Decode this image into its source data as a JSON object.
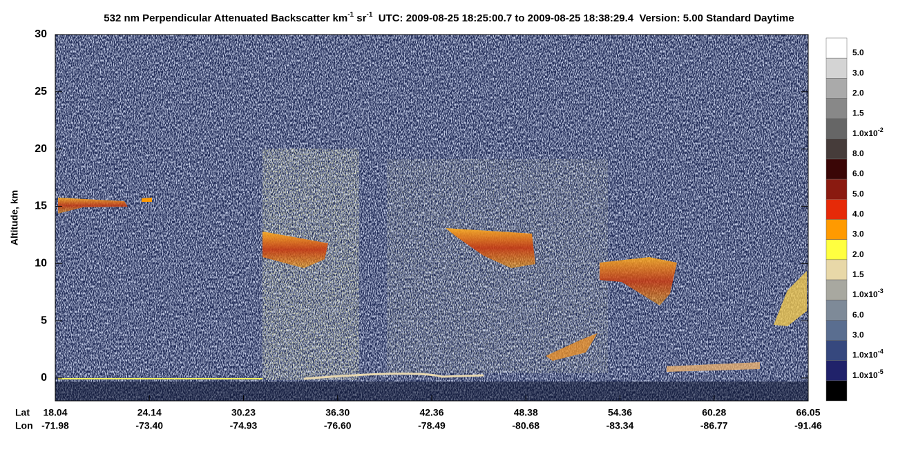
{
  "chart_data": {
    "type": "profile",
    "title_parts": [
      "532 nm Perpendicular Attenuated Backscatter km",
      "-1",
      " sr",
      "-1",
      "  UTC: 2009-08-25 18:25:00.7 to 2009-08-25 18:38:29.4  Version: 5.00 Standard Daytime"
    ],
    "y_label": "Altitude, km",
    "ylim": [
      -2,
      30
    ],
    "yticks": [
      0,
      5,
      10,
      15,
      20,
      25,
      30
    ],
    "x_row_labels": [
      "Lat",
      "Lon"
    ],
    "lat": [
      "18.04",
      "24.14",
      "30.23",
      "36.30",
      "42.36",
      "48.38",
      "54.36",
      "60.28",
      "66.05"
    ],
    "lon": [
      "-71.98",
      "-73.40",
      "-74.93",
      "-76.60",
      "-78.49",
      "-80.68",
      "-83.34",
      "-86.77",
      "-91.46"
    ],
    "colorbar": {
      "colors": [
        "#ffffff",
        "#d4d4d4",
        "#aaaaaa",
        "#888888",
        "#666666",
        "#463c3a",
        "#3a0606",
        "#8a1a10",
        "#e62a08",
        "#ff9a00",
        "#ffff40",
        "#e8d8a8",
        "#a8a8a0",
        "#7e8a98",
        "#5a6e90",
        "#36487e",
        "#20226a",
        "#000000"
      ],
      "labels": [
        {
          "base": "5.0"
        },
        {
          "base": "3.0"
        },
        {
          "base": "2.0"
        },
        {
          "base": "1.5"
        },
        {
          "base": "1.0x10",
          "exp": "-2"
        },
        {
          "base": "8.0"
        },
        {
          "base": "6.0"
        },
        {
          "base": "5.0"
        },
        {
          "base": "4.0"
        },
        {
          "base": "3.0"
        },
        {
          "base": "2.0"
        },
        {
          "base": "1.5"
        },
        {
          "base": "1.0x10",
          "exp": "-3"
        },
        {
          "base": "6.0"
        },
        {
          "base": "3.0"
        },
        {
          "base": "1.0x10",
          "exp": "-4"
        },
        {
          "base": "1.0x10",
          "exp": "-5"
        }
      ]
    }
  }
}
